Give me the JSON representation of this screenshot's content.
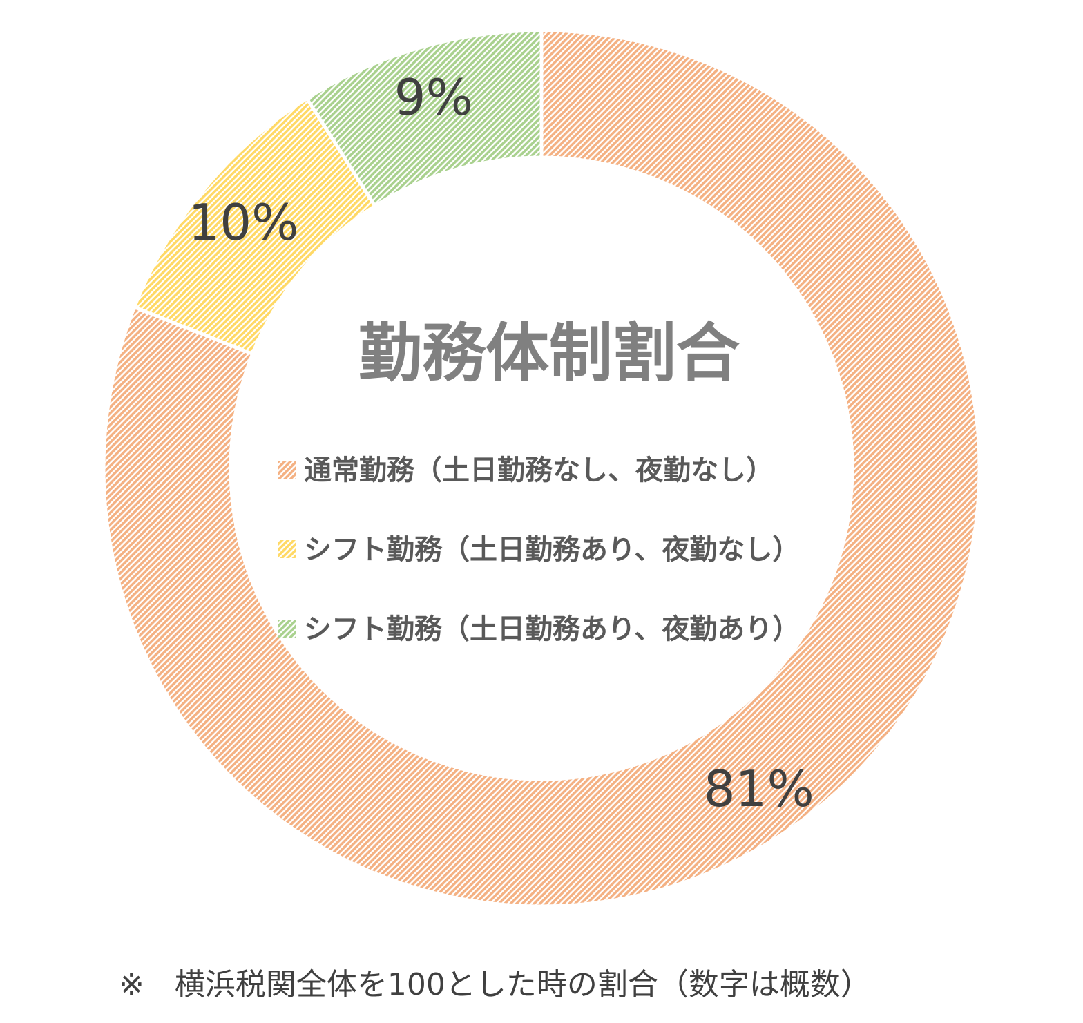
{
  "chart_data": {
    "type": "pie",
    "donut": true,
    "title": "勤務体制割合",
    "slices": [
      {
        "label": "通常勤務（土日勤務なし、夜勤なし）",
        "value": 81,
        "display": "81%",
        "color": "#f4b183"
      },
      {
        "label": "シフト勤務（土日勤務あり、夜勤なし）",
        "value": 10,
        "display": "10%",
        "color": "#ffd966"
      },
      {
        "label": "シフト勤務（土日勤務あり、夜勤あり）",
        "value": 9,
        "display": "9%",
        "color": "#a9d18e"
      }
    ],
    "legend_position": "center",
    "pattern": "diagonal-hatch"
  },
  "footnote": "※　横浜税関全体を100とした時の割合（数字は概数）"
}
